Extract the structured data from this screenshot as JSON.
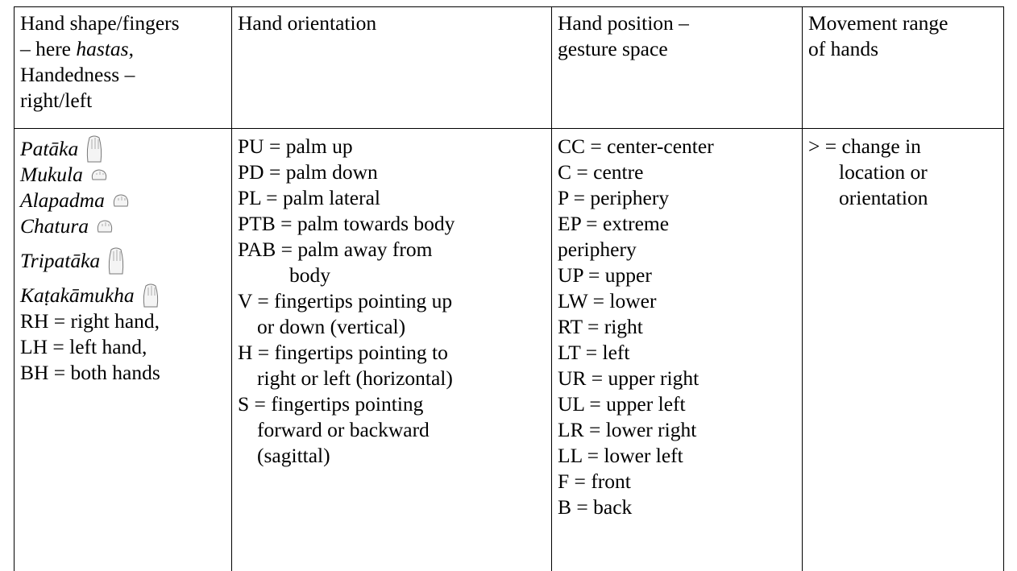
{
  "table": {
    "header": [
      [
        "Hand shape/fingers",
        "– here ",
        "hastas",
        ",",
        "Handedness –",
        "right/left"
      ],
      [
        "Hand orientation"
      ],
      [
        "Hand position –",
        "gesture space"
      ],
      [
        "Movement range",
        "of hands"
      ]
    ],
    "rows": [
      [
        {
          "hastas": [
            "Patāka",
            "Mukula",
            "Alapadma",
            "Chatura",
            "Tripatāka",
            "Kaṭakāmukha"
          ],
          "hands": [
            "RH = right hand,",
            "LH = left hand,",
            "BH = both hands"
          ]
        },
        [
          [
            "PU = palm up"
          ],
          [
            "PD = palm down"
          ],
          [
            "PL = palm lateral"
          ],
          [
            "PTB = palm towards body"
          ],
          [
            "PAB = palm away from",
            "body"
          ],
          [
            "V = fingertips pointing up",
            "or down (vertical)"
          ],
          [
            "H = fingertips pointing to",
            "right or left (horizontal)"
          ],
          [
            "S = fingertips pointing",
            "forward or backward",
            "(sagittal)"
          ]
        ],
        [
          [
            "CC = center-center"
          ],
          [
            "C = centre"
          ],
          [
            "P = periphery"
          ],
          [
            "EP = extreme",
            "periphery"
          ],
          [
            "UP = upper"
          ],
          [
            "LW = lower"
          ],
          [
            "RT = right"
          ],
          [
            "LT = left"
          ],
          [
            "UR = upper right"
          ],
          [
            "UL = upper left"
          ],
          [
            "LR = lower right"
          ],
          [
            "LL = lower left"
          ],
          [
            "F = front"
          ],
          [
            "B = back"
          ]
        ],
        [
          [
            "> = change in",
            "location or",
            "orientation"
          ]
        ]
      ]
    ]
  }
}
